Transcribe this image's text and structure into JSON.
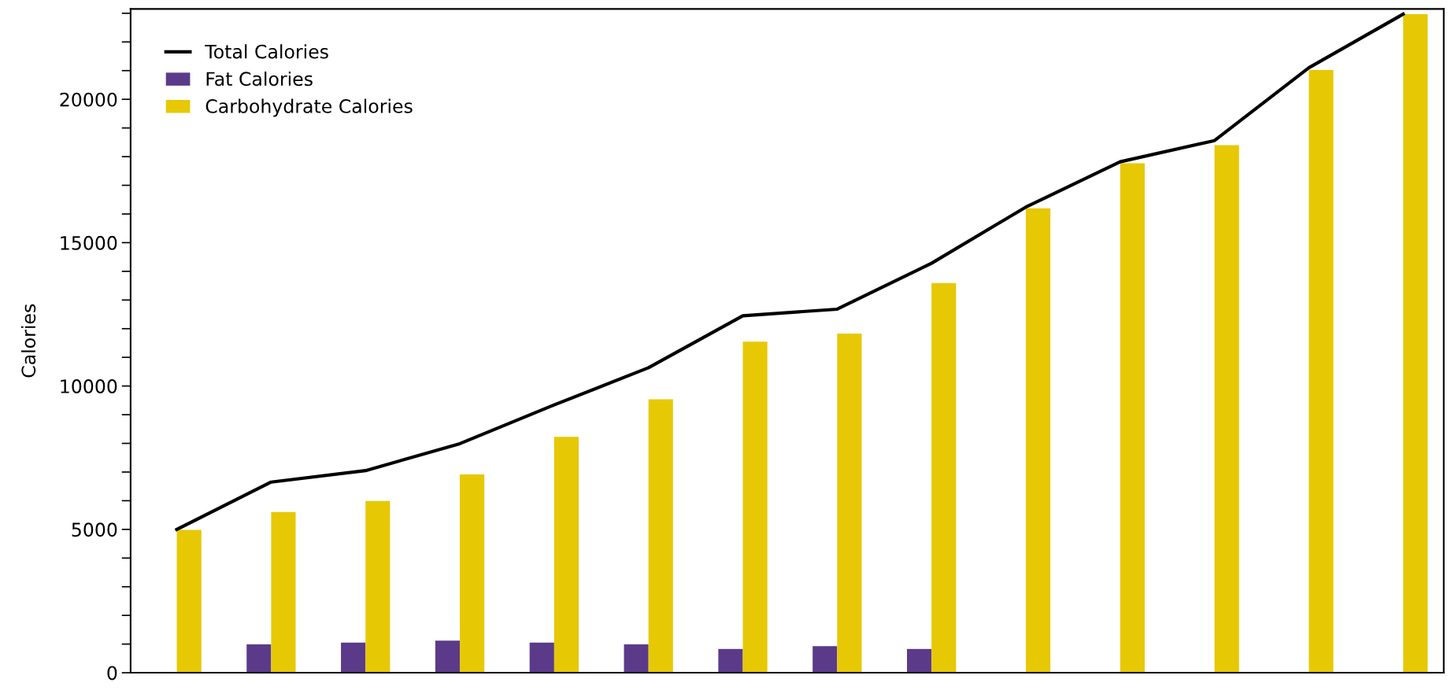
{
  "chart_data": {
    "type": "bar",
    "ylabel": "Calories",
    "categories": [
      null,
      null,
      null,
      null,
      null,
      null,
      null,
      null,
      null,
      null,
      null,
      null,
      null,
      null
    ],
    "series": [
      {
        "name": "Total Calories",
        "type": "line",
        "color": "#000000",
        "values": [
          5000,
          6650,
          7050,
          7990,
          9340,
          10640,
          12450,
          12680,
          14280,
          16240,
          17820,
          18560,
          21100,
          22970
        ]
      },
      {
        "name": "Fat Calories",
        "color": "#5b3a8a",
        "values": [
          null,
          990,
          1050,
          1120,
          1050,
          990,
          830,
          930,
          830,
          null,
          null,
          null,
          null,
          null
        ]
      },
      {
        "name": "Carbohydrate Calories",
        "color": "#e6c805",
        "values": [
          4980,
          5610,
          5990,
          6920,
          8230,
          9540,
          11550,
          11830,
          13590,
          16200,
          17770,
          18400,
          21020,
          22970
        ]
      }
    ],
    "ylim": [
      0,
      23150
    ],
    "yticks": [
      0,
      {
        "value": 1000,
        "label": null
      },
      {
        "value": 2000,
        "label": null
      },
      {
        "value": 3000,
        "label": null
      },
      {
        "value": 4000,
        "label": null
      },
      5000,
      {
        "value": 6000,
        "label": null
      },
      {
        "value": 7000,
        "label": null
      },
      {
        "value": 8000,
        "label": null
      },
      {
        "value": 9000,
        "label": null
      },
      10000,
      {
        "value": 11000,
        "label": null
      },
      {
        "value": 12000,
        "label": null
      },
      {
        "value": 13000,
        "label": null
      },
      {
        "value": 14000,
        "label": null
      },
      15000,
      {
        "value": 16000,
        "label": null
      },
      {
        "value": 17000,
        "label": null
      },
      {
        "value": 18000,
        "label": null
      },
      {
        "value": 19000,
        "label": null
      },
      20000,
      {
        "value": 21000,
        "label": null
      },
      {
        "value": 22000,
        "label": null
      },
      {
        "value": 23000,
        "label": null
      }
    ],
    "tick_labels": "y",
    "grid": false,
    "legend": "top left",
    "marker": "none",
    "line_style": "solid"
  }
}
